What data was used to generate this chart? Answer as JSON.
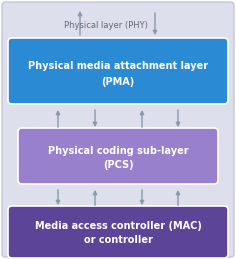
{
  "bg_color": "#dde0ec",
  "bg_border": "#b8bcd4",
  "outer_bg": "#ffffff",
  "pma_color": "#2a8ad4",
  "pma_border": "#ffffff",
  "pma_text_line1": "Physical media attachment layer",
  "pma_text_line2": "(PMA)",
  "pcs_color": "#9980cc",
  "pcs_border": "#ffffff",
  "pcs_text_line1": "Physical coding sub-layer",
  "pcs_text_line2": "(PCS)",
  "mac_color": "#5c4499",
  "mac_border": "#ffffff",
  "mac_text_line1": "Media access controller (MAC)",
  "mac_text_line2": "or controller",
  "phy_text": "Physical layer (PHY)",
  "arrow_color": "#8899aa",
  "white": "#ffffff",
  "phy_text_color": "#666677",
  "figsize": [
    2.36,
    2.59
  ],
  "dpi": 100
}
